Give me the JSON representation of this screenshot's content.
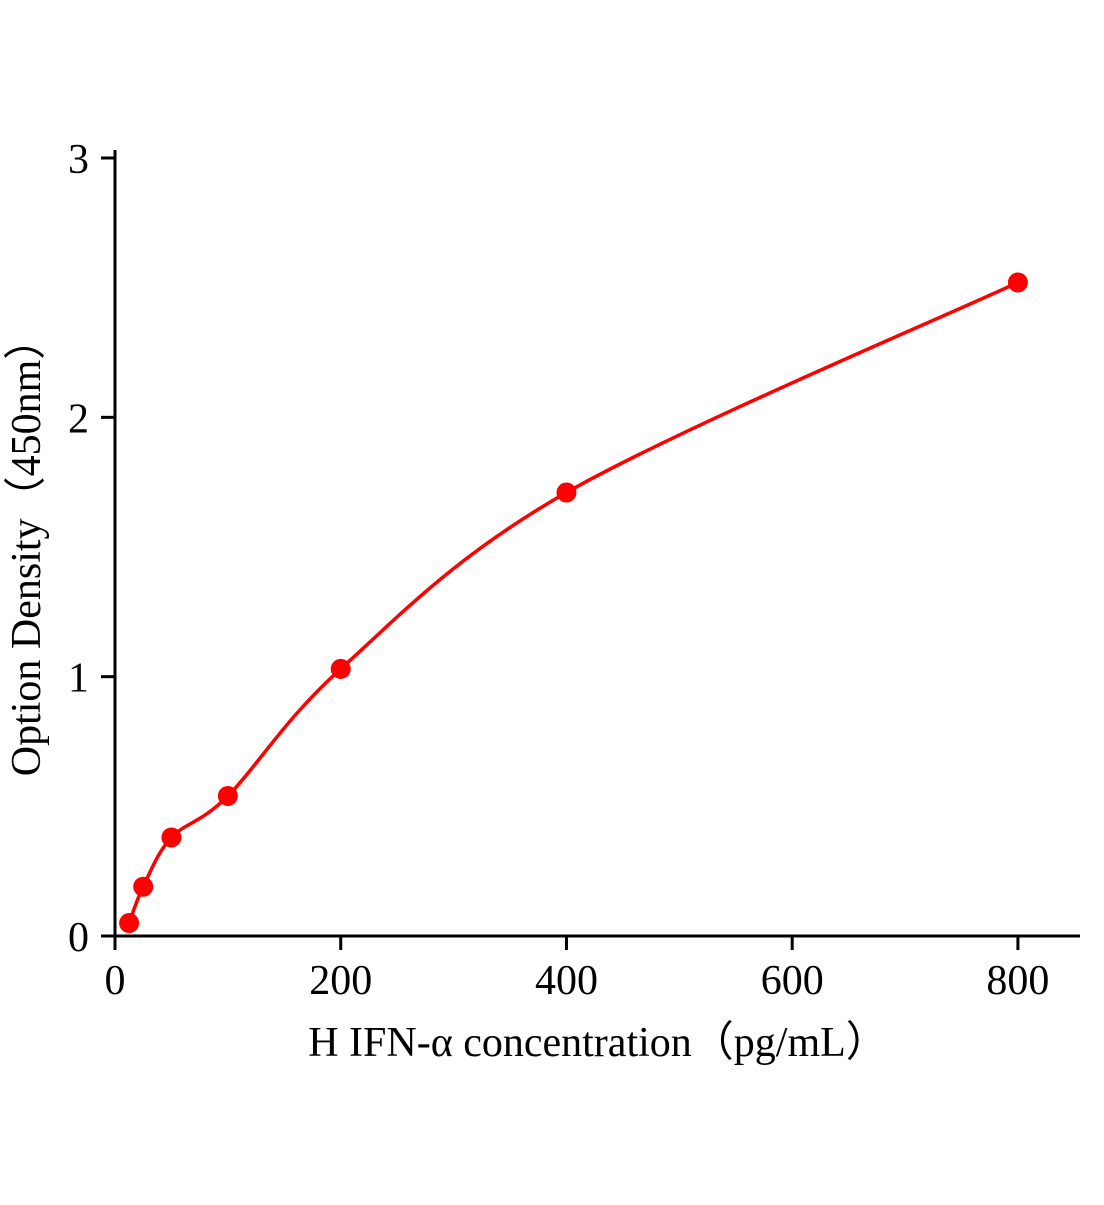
{
  "chart_data": {
    "type": "scatter",
    "title": "",
    "xlabel": "H IFN-α concentration（pg/mL）",
    "ylabel": "Option Density（450nm）",
    "x": [
      12.5,
      25,
      50,
      100,
      200,
      400,
      800
    ],
    "y": [
      0.05,
      0.19,
      0.38,
      0.54,
      1.03,
      1.71,
      2.52
    ],
    "xlim": [
      0,
      855
    ],
    "ylim": [
      0,
      3
    ],
    "xticks": [
      0,
      200,
      400,
      600,
      800
    ],
    "yticks": [
      0,
      1,
      2,
      3
    ],
    "grid": false,
    "legend": null,
    "curve_color": "#fe0000",
    "point_color": "#fe0000",
    "axis_color": "#000000"
  }
}
